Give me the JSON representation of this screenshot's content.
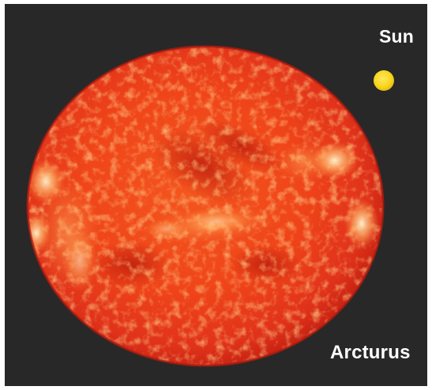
{
  "labels": {
    "sun": "Sun",
    "arcturus": "Arcturus"
  },
  "colors": {
    "background": "#282828",
    "frame": "#ffffff",
    "sun": "#f7d51d",
    "arcturus_core": "#f2371a",
    "arcturus_rim": "#c91e10",
    "label_text": "#ffffff"
  }
}
